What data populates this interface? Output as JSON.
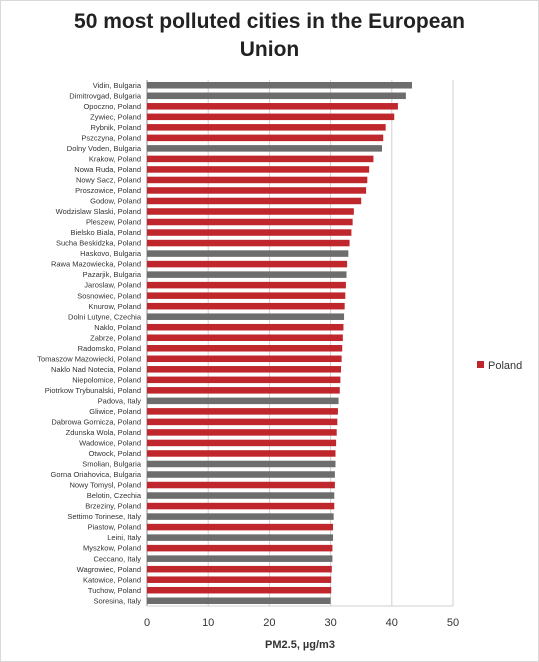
{
  "chart_data": {
    "type": "bar",
    "orientation": "horizontal",
    "title_lines": [
      "50 most polluted cities in the European",
      "Union"
    ],
    "xlabel": "PM2.5, µg/m3",
    "ylabel": "",
    "xlim": [
      0,
      50
    ],
    "xticks": [
      "0",
      "10",
      "20",
      "30",
      "40",
      "50"
    ],
    "grid": true,
    "legend": {
      "label": "Poland",
      "placement": "right"
    },
    "colors": {
      "highlight": "#c0272d",
      "other": "#6d6d6d",
      "grid": "#d0d0d0",
      "axis": "#888888"
    },
    "categories": [
      "Vidin, Bulgaria",
      "Dimitrovgad, Bulgaria",
      "Opoczno, Poland",
      "Zywiec, Poland",
      "Rybnik, Poland",
      "Pszczyna, Poland",
      "Dolny Voden, Bulgaria",
      "Krakow, Poland",
      "Nowa Ruda, Poland",
      "Nowy Sacz, Poland",
      "Proszowice, Poland",
      "Godow, Poland",
      "Wodzislaw Slaski, Poland",
      "Pleszew, Poland",
      "Bielsko Biala, Poland",
      "Sucha Beskidzka, Poland",
      "Haskovo, Bulgaria",
      "Rawa Mazowiecka, Poland",
      "Pazarjik, Bulgaria",
      "Jaroslaw, Poland",
      "Sosnowiec, Poland",
      "Knurow, Poland",
      "Dolni Lutyne, Czechia",
      "Naklo, Poland",
      "Zabrze, Poland",
      "Radomsko, Poland",
      "Tomaszow Mazowiecki, Poland",
      "Naklo Nad Notecia, Poland",
      "Niepolomice, Poland",
      "Piotrkow Trybunalski, Poland",
      "Padova, Italy",
      "Gliwice, Poland",
      "Dabrowa Gornicza, Poland",
      "Zdunska Wola, Poland",
      "Wadowice, Poland",
      "Otwock, Poland",
      "Smolian, Bulgaria",
      "Gorna Oriahovica, Bulgaria",
      "Nowy Tomysl, Poland",
      "Belotin, Czechia",
      "Brzeziny, Poland",
      "Settimo Torinese, Italy",
      "Piastow, Poland",
      "Leini, Italy",
      "Myszkow, Poland",
      "Ceccano, Italy",
      "Wagrowiec, Poland",
      "Katowice, Poland",
      "Tuchow, Poland",
      "Soresina, Italy"
    ],
    "values": [
      43.3,
      42.3,
      41.0,
      40.4,
      39.0,
      38.6,
      38.4,
      37.0,
      36.3,
      36.0,
      35.8,
      35.0,
      33.8,
      33.6,
      33.4,
      33.1,
      32.9,
      32.7,
      32.6,
      32.5,
      32.4,
      32.3,
      32.2,
      32.1,
      32.0,
      31.9,
      31.8,
      31.7,
      31.6,
      31.5,
      31.3,
      31.2,
      31.1,
      31.0,
      30.9,
      30.8,
      30.8,
      30.7,
      30.7,
      30.6,
      30.6,
      30.5,
      30.4,
      30.4,
      30.3,
      30.3,
      30.2,
      30.1,
      30.1,
      30.0
    ],
    "highlight": [
      false,
      false,
      true,
      true,
      true,
      true,
      false,
      true,
      true,
      true,
      true,
      true,
      true,
      true,
      true,
      true,
      false,
      true,
      false,
      true,
      true,
      true,
      false,
      true,
      true,
      true,
      true,
      true,
      true,
      true,
      false,
      true,
      true,
      true,
      true,
      true,
      false,
      false,
      true,
      false,
      true,
      false,
      true,
      false,
      true,
      false,
      true,
      true,
      true,
      false
    ]
  }
}
